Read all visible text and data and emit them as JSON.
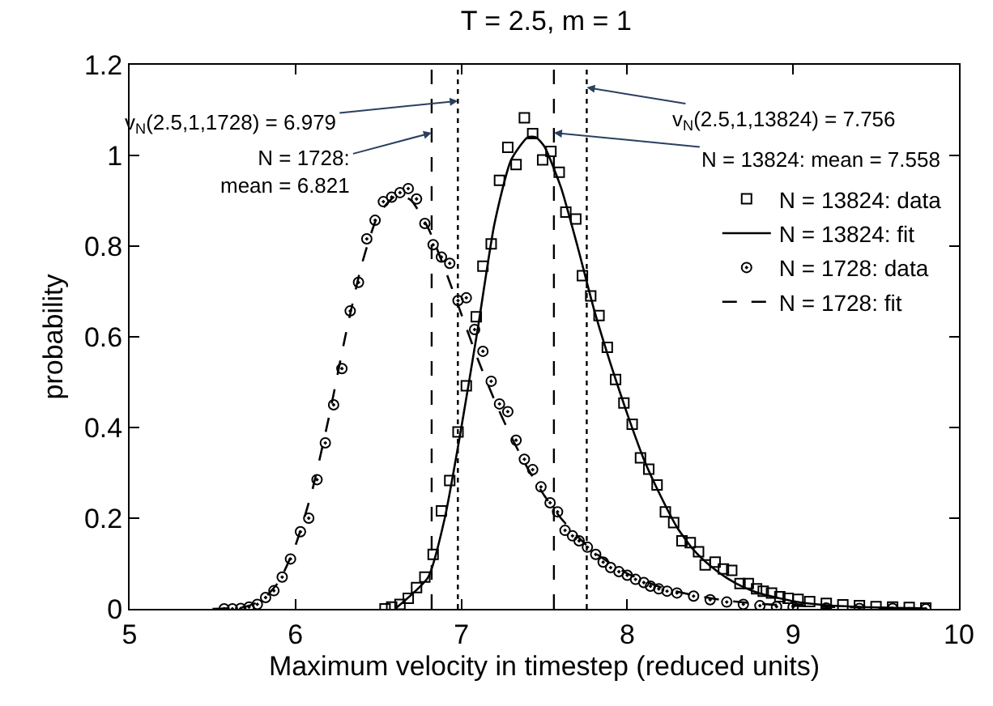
{
  "chart_data": {
    "type": "scatter",
    "title": "T = 2.5, m = 1",
    "xlabel": "Maximum velocity in timestep (reduced units)",
    "ylabel": "probability",
    "xlim": [
      5,
      10
    ],
    "xticks": [
      5,
      6,
      7,
      8,
      9,
      10
    ],
    "ylim": [
      0,
      1.2
    ],
    "yticks": [
      0,
      0.2,
      0.4,
      0.6,
      0.8,
      1,
      1.2
    ],
    "legend": "top right",
    "series": [
      {
        "name": "N = 13824: data",
        "marker": "square",
        "color": "#000000",
        "x": [
          6.54,
          6.58,
          6.63,
          6.68,
          6.73,
          6.78,
          6.83,
          6.88,
          6.93,
          6.98,
          7.03,
          7.09,
          7.13,
          7.18,
          7.23,
          7.28,
          7.33,
          7.38,
          7.43,
          7.49,
          7.54,
          7.59,
          7.63,
          7.69,
          7.73,
          7.78,
          7.83,
          7.88,
          7.93,
          7.98,
          8.03,
          8.08,
          8.13,
          8.18,
          8.23,
          8.28,
          8.33,
          8.38,
          8.43,
          8.47,
          8.53,
          8.58,
          8.63,
          8.68,
          8.73,
          8.78,
          8.82,
          8.87,
          8.92,
          8.97,
          9.03,
          9.1,
          9.2,
          9.3,
          9.4,
          9.5,
          9.6,
          9.7,
          9.8
        ],
        "values": [
          0,
          0.004,
          0.01,
          0.023,
          0.047,
          0.07,
          0.12,
          0.216,
          0.283,
          0.39,
          0.492,
          0.644,
          0.756,
          0.805,
          0.945,
          1.018,
          0.98,
          1.083,
          1.048,
          0.99,
          1.009,
          0.963,
          0.875,
          0.86,
          0.735,
          0.69,
          0.647,
          0.577,
          0.506,
          0.454,
          0.407,
          0.333,
          0.308,
          0.273,
          0.214,
          0.19,
          0.15,
          0.146,
          0.126,
          0.097,
          0.103,
          0.088,
          0.085,
          0.056,
          0.056,
          0.044,
          0.039,
          0.035,
          0.027,
          0.023,
          0.021,
          0.016,
          0.012,
          0.009,
          0.007,
          0.005,
          0.004,
          0.003,
          0.002
        ]
      },
      {
        "name": "N = 13824: fit",
        "type": "line",
        "marker": "none",
        "line_style": "solid",
        "color": "#000000",
        "x": [
          6.6,
          6.8,
          6.9,
          7.0,
          7.1,
          7.2,
          7.3,
          7.4,
          7.45,
          7.5,
          7.6,
          7.7,
          7.8,
          7.9,
          8.0,
          8.1,
          8.2,
          8.3,
          8.4,
          8.5,
          8.6,
          8.7,
          8.8,
          9.0,
          9.2,
          9.5,
          9.8
        ],
        "values": [
          0,
          0.07,
          0.2,
          0.4,
          0.62,
          0.85,
          0.99,
          1.04,
          1.04,
          1.02,
          0.93,
          0.8,
          0.66,
          0.54,
          0.43,
          0.33,
          0.25,
          0.18,
          0.13,
          0.095,
          0.068,
          0.048,
          0.034,
          0.017,
          0.008,
          0.003,
          0.001
        ]
      },
      {
        "name": "N = 1728: data",
        "marker": "circle",
        "color": "#000000",
        "x": [
          5.57,
          5.62,
          5.67,
          5.72,
          5.77,
          5.82,
          5.87,
          5.92,
          5.97,
          6.03,
          6.08,
          6.13,
          6.18,
          6.23,
          6.28,
          6.33,
          6.38,
          6.43,
          6.48,
          6.53,
          6.58,
          6.63,
          6.68,
          6.73,
          6.78,
          6.83,
          6.88,
          6.93,
          6.98,
          7.03,
          7.08,
          7.13,
          7.18,
          7.23,
          7.28,
          7.33,
          7.38,
          7.43,
          7.48,
          7.535,
          7.58,
          7.625,
          7.67,
          7.71,
          7.76,
          7.81,
          7.855,
          7.9,
          7.95,
          8.0,
          8.05,
          8.1,
          8.14,
          8.19,
          8.24,
          8.3,
          8.4,
          8.5,
          8.6,
          8.7,
          8.8,
          8.9,
          9.0,
          9.2,
          9.4,
          9.6,
          9.8
        ],
        "values": [
          0,
          0,
          0.001,
          0.004,
          0.01,
          0.025,
          0.04,
          0.07,
          0.11,
          0.17,
          0.2,
          0.285,
          0.366,
          0.45,
          0.53,
          0.657,
          0.72,
          0.816,
          0.857,
          0.898,
          0.908,
          0.918,
          0.927,
          0.904,
          0.85,
          0.803,
          0.776,
          0.762,
          0.68,
          0.686,
          0.616,
          0.568,
          0.502,
          0.452,
          0.435,
          0.372,
          0.33,
          0.307,
          0.269,
          0.234,
          0.214,
          0.173,
          0.161,
          0.15,
          0.136,
          0.12,
          0.103,
          0.091,
          0.082,
          0.074,
          0.065,
          0.058,
          0.05,
          0.044,
          0.039,
          0.035,
          0.028,
          0.02,
          0.015,
          0.01,
          0.007,
          0.005,
          0.004,
          0.002,
          0.001,
          0.001,
          0
        ]
      },
      {
        "name": "N = 1728: fit",
        "type": "line",
        "marker": "none",
        "line_style": "dashed",
        "color": "#000000",
        "x": [
          5.5,
          5.7,
          5.8,
          5.9,
          6.0,
          6.1,
          6.2,
          6.3,
          6.4,
          6.5,
          6.6,
          6.65,
          6.7,
          6.8,
          6.9,
          7.0,
          7.1,
          7.2,
          7.3,
          7.4,
          7.5,
          7.6,
          7.7,
          7.8,
          7.9,
          8.0,
          8.2,
          8.4,
          8.6,
          8.8,
          9.0,
          9.4,
          9.8
        ],
        "values": [
          0,
          0.005,
          0.02,
          0.06,
          0.14,
          0.26,
          0.42,
          0.6,
          0.76,
          0.87,
          0.91,
          0.91,
          0.9,
          0.84,
          0.75,
          0.65,
          0.55,
          0.46,
          0.38,
          0.31,
          0.25,
          0.2,
          0.16,
          0.125,
          0.1,
          0.078,
          0.048,
          0.03,
          0.018,
          0.011,
          0.007,
          0.003,
          0.001
        ]
      }
    ],
    "ref_lines": [
      {
        "axis": "x",
        "value": 6.821,
        "line_style": "dashed",
        "color": "#000000"
      },
      {
        "axis": "x",
        "value": 6.979,
        "line_style": "dotted",
        "color": "#000000"
      },
      {
        "axis": "x",
        "value": 7.558,
        "line_style": "dashed",
        "color": "#000000"
      },
      {
        "axis": "x",
        "value": 7.756,
        "line_style": "dotted",
        "color": "#000000"
      }
    ],
    "annotations": [
      {
        "text": "v$_{N}$(2.5,1,1728) = 6.979",
        "x": 6.979,
        "y": 1.12
      },
      {
        "text": "N = 1728:\nmean = 6.821",
        "x": 6.821,
        "y": 1.05
      },
      {
        "text": "v$_{N}$(2.5,1,13824) = 7.756",
        "x": 7.756,
        "y": 1.15
      },
      {
        "text": "N = 13824: mean = 7.558",
        "x": 7.558,
        "y": 1.05
      }
    ]
  }
}
